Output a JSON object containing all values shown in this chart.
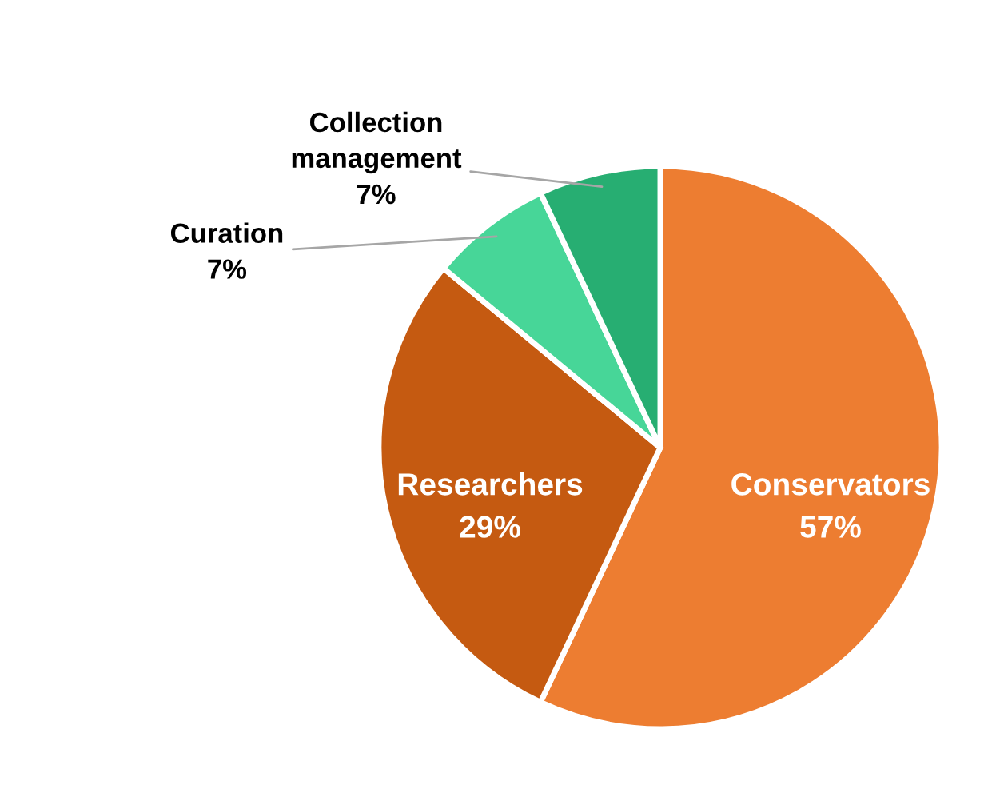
{
  "chart_data": {
    "type": "pie",
    "categories": [
      "Conservators",
      "Researchers",
      "Curation",
      "Collection management"
    ],
    "values": [
      57,
      29,
      7,
      7
    ],
    "colors": [
      "#ed7d31",
      "#c55a11",
      "#47d698",
      "#27ae72"
    ],
    "value_labels": [
      "57%",
      "29%",
      "7%",
      "7%"
    ],
    "legend": false
  }
}
